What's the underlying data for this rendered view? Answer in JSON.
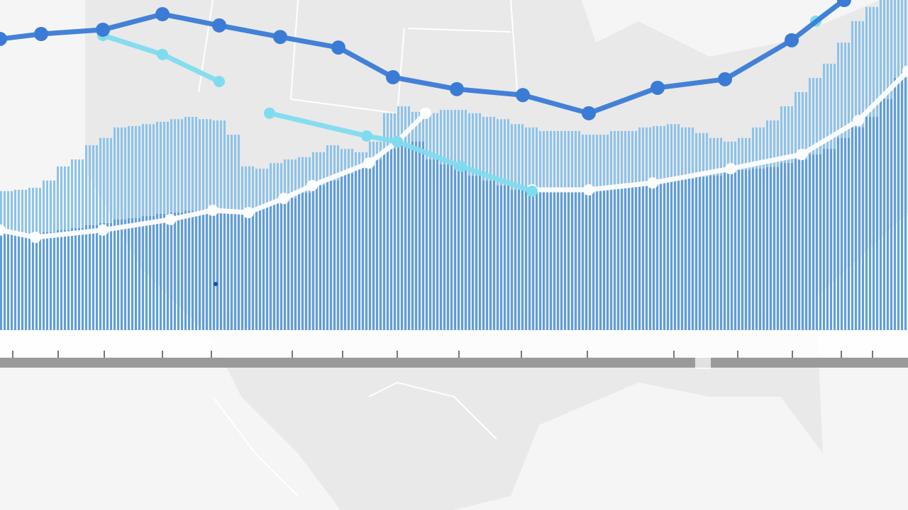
{
  "chart_data": {
    "type": "bar_line",
    "xlim": [
      0,
      64
    ],
    "ylim": [
      0,
      100
    ],
    "bars": [
      {
        "color": "#8cc3ea",
        "values": [
          42.1,
          42.5,
          43.1,
          45.3,
          49.6,
          51.7,
          56.0,
          58.2,
          61.4,
          61.8,
          62.4,
          63.1,
          63.9,
          64.6,
          63.9,
          63.5,
          59.2,
          49.6,
          48.9,
          50.6,
          51.7,
          52.4,
          53.9,
          56.0,
          54.9,
          53.9,
          57.1,
          65.7,
          67.8,
          66.1,
          65.7,
          66.7,
          66.7,
          65.7,
          64.6,
          63.9,
          62.4,
          61.4,
          60.3,
          60.3,
          60.3,
          59.2,
          59.2,
          60.3,
          60.3,
          61.4,
          61.8,
          62.4,
          61.4,
          59.7,
          58.2,
          57.1,
          58.2,
          61.4,
          63.5,
          67.8,
          72.1,
          76.4,
          80.7,
          87.1,
          93.6,
          97.9,
          100,
          100
        ]
      },
      {
        "color": "#5c9edc",
        "values": [
          29.8,
          28.8,
          29.2,
          29.6,
          30.3,
          30.9,
          31.8,
          32.4,
          33.5,
          33.9,
          34.5,
          35.2,
          35.6,
          36.1,
          36.3,
          36.1,
          35.6,
          35.6,
          37.3,
          38.8,
          39.9,
          41.6,
          43.8,
          45.3,
          47.4,
          49.6,
          51.7,
          54.9,
          56.0,
          57.1,
          51.7,
          50.2,
          48.5,
          46.8,
          45.3,
          43.8,
          42.5,
          42.1,
          42.1,
          42.1,
          42.1,
          42.5,
          43.1,
          43.6,
          44.2,
          44.6,
          45.1,
          45.5,
          45.9,
          46.4,
          46.8,
          47.6,
          48.5,
          48.9,
          49.4,
          50.6,
          51.7,
          53.2,
          54.9,
          58.2,
          61.4,
          64.6,
          70.0,
          76.4
        ]
      }
    ],
    "lines": [
      {
        "color": "#ffffff",
        "x": [
          0,
          2.5,
          7.25,
          12,
          15,
          17.5,
          20,
          22,
          26,
          28,
          30,
          33,
          37.5,
          41.5,
          46,
          51.5,
          56.5,
          60.5,
          64
        ],
        "values": [
          30.3,
          28.1,
          30.3,
          33.5,
          36.3,
          35.6,
          39.9,
          43.8,
          50.6,
          57.1,
          65.7,
          null,
          42.5,
          42.5,
          44.6,
          48.9,
          53.2,
          63.5,
          78.5
        ]
      },
      {
        "color": "#7fdcef",
        "x": [
          7.25,
          11.45,
          15.45,
          17,
          19,
          25.85,
          28,
          32.5,
          37.5,
          40,
          57.5,
          59.5
        ],
        "values": [
          89.3,
          83.5,
          75.3,
          null,
          65.7,
          58.8,
          57.1,
          49.6,
          42.1,
          null,
          93.6,
          100
        ]
      },
      {
        "color": "#3a7bd5",
        "x": [
          0,
          2.9,
          7.25,
          11.45,
          15.45,
          19.75,
          23.85,
          27.7,
          32.2,
          36.85,
          41.5,
          46.35,
          51.1,
          55.8,
          59.5
        ],
        "values": [
          88.2,
          89.7,
          91.0,
          95.7,
          92.3,
          88.8,
          85.6,
          76.6,
          73.0,
          71.2,
          65.7,
          73.4,
          76.0,
          87.8,
          100
        ]
      }
    ]
  }
}
